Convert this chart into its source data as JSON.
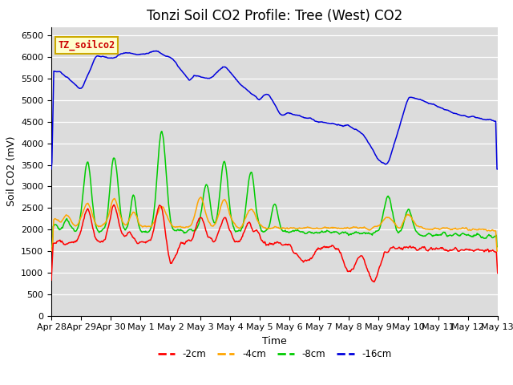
{
  "title": "Tonzi Soil CO2 Profile: Tree (West) CO2",
  "ylabel": "Soil CO2 (mV)",
  "xlabel": "Time",
  "legend_label": "TZ_soilco2",
  "ylim": [
    0,
    6700
  ],
  "yticks": [
    0,
    500,
    1000,
    1500,
    2000,
    2500,
    3000,
    3500,
    4000,
    4500,
    5000,
    5500,
    6000,
    6500
  ],
  "x_tick_labels": [
    "Apr 28",
    "Apr 29",
    "Apr 30",
    "May 1",
    "May 2",
    "May 3",
    "May 4",
    "May 5",
    "May 6",
    "May 7",
    "May 8",
    "May 9",
    "May 10",
    "May 11",
    "May 12",
    "May 13"
  ],
  "colors": {
    "-2cm": "#ff0000",
    "-4cm": "#ffa500",
    "-8cm": "#00cc00",
    "-16cm": "#0000dd"
  },
  "bg_color": "#dcdcdc",
  "title_fontsize": 12,
  "axis_fontsize": 9,
  "tick_fontsize": 8,
  "legend_box_facecolor": "#ffffcc",
  "legend_box_edgecolor": "#ccaa00",
  "legend_box_textcolor": "#cc0000"
}
